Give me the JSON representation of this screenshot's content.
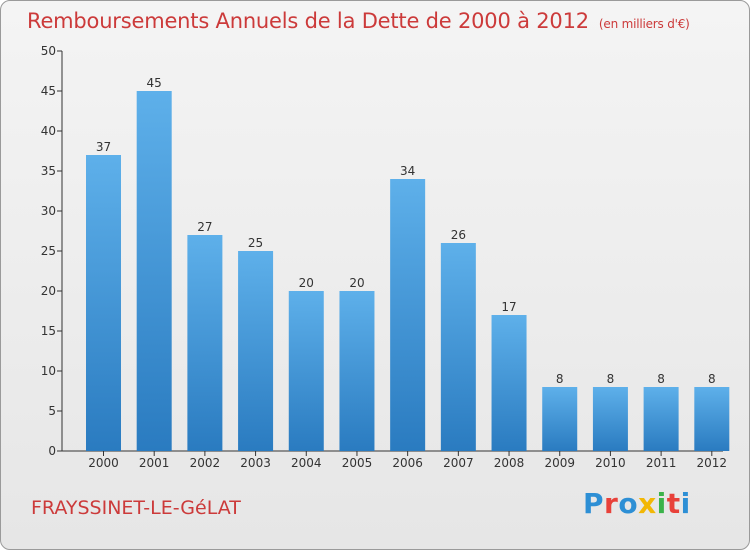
{
  "header": {
    "title": "Remboursements Annuels de la Dette de 2000 à 2012",
    "unit": "(en milliers d'€)"
  },
  "footer": {
    "place": "FRAYSSINET-LE-GéLAT",
    "logo": "Proxiti",
    "logo_colors": [
      "#2d8fd5",
      "#e8413a",
      "#2d8fd5",
      "#f2b705",
      "#3bb34a",
      "#e8413a",
      "#2d8fd5"
    ]
  },
  "colors": {
    "title": "#cc3a3a",
    "bar_top": "#5eb0ea",
    "bar_bottom": "#2a7bc0",
    "axis": "#333333"
  },
  "chart_data": {
    "type": "bar",
    "title": "Remboursements Annuels de la Dette de 2000 à 2012",
    "xlabel": "",
    "ylabel": "",
    "categories": [
      "2000",
      "2001",
      "2002",
      "2003",
      "2004",
      "2005",
      "2006",
      "2007",
      "2008",
      "2009",
      "2010",
      "2011",
      "2012"
    ],
    "values": [
      37,
      45,
      27,
      25,
      20,
      20,
      34,
      26,
      17,
      8,
      8,
      8,
      8
    ],
    "ylim": [
      0,
      50
    ],
    "yticks": [
      0,
      5,
      10,
      15,
      20,
      25,
      30,
      35,
      40,
      45,
      50
    ],
    "grid": false,
    "legend": "none"
  }
}
